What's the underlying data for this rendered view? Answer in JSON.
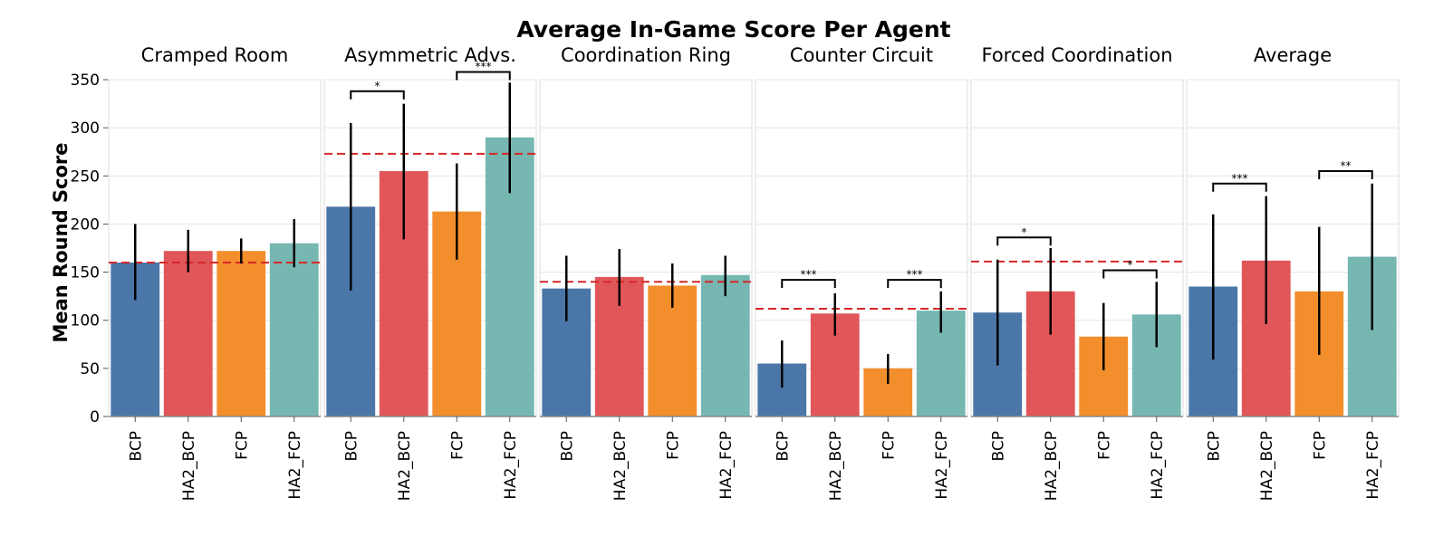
{
  "chart_data": {
    "type": "bar",
    "title": "Average In-Game Score Per Agent",
    "ylabel": "Mean Round Score",
    "ylim": [
      0,
      350
    ],
    "yticks": [
      0,
      50,
      100,
      150,
      200,
      250,
      300,
      350
    ],
    "grid": true,
    "categories": [
      "BCP",
      "HA2_BCP",
      "FCP",
      "HA2_FCP"
    ],
    "colors": [
      "#4a76a8",
      "#e15759",
      "#f28e2b",
      "#76b7b2"
    ],
    "reference_color": "#d62728",
    "panels": [
      {
        "title": "Cramped Room",
        "values": [
          160,
          172,
          172,
          180
        ],
        "error_low": [
          121,
          150,
          159,
          155
        ],
        "error_high": [
          200,
          194,
          185,
          205
        ],
        "reference": 160,
        "significance": []
      },
      {
        "title": "Asymmetric Advs.",
        "values": [
          218,
          255,
          213,
          290
        ],
        "error_low": [
          131,
          184,
          163,
          232
        ],
        "error_high": [
          305,
          325,
          263,
          347
        ],
        "reference": 273,
        "significance": [
          {
            "from": 0,
            "to": 1,
            "y": 338,
            "label": "*"
          },
          {
            "from": 2,
            "to": 3,
            "y": 358,
            "label": "***"
          }
        ]
      },
      {
        "title": "Coordination Ring",
        "values": [
          133,
          145,
          136,
          147
        ],
        "error_low": [
          99,
          115,
          113,
          125
        ],
        "error_high": [
          167,
          174,
          159,
          167
        ],
        "reference": 140,
        "significance": []
      },
      {
        "title": "Counter Circuit",
        "values": [
          55,
          107,
          50,
          110
        ],
        "error_low": [
          30,
          84,
          34,
          87
        ],
        "error_high": [
          79,
          128,
          65,
          130
        ],
        "reference": 112,
        "significance": [
          {
            "from": 0,
            "to": 1,
            "y": 142,
            "label": "***"
          },
          {
            "from": 2,
            "to": 3,
            "y": 142,
            "label": "***"
          }
        ]
      },
      {
        "title": "Forced Coordination",
        "values": [
          108,
          130,
          83,
          106
        ],
        "error_low": [
          53,
          85,
          48,
          72
        ],
        "error_high": [
          163,
          175,
          118,
          140
        ],
        "reference": 161,
        "significance": [
          {
            "from": 0,
            "to": 1,
            "y": 186,
            "label": "*"
          },
          {
            "from": 2,
            "to": 3,
            "y": 152,
            "label": "*"
          }
        ]
      },
      {
        "title": "Average",
        "values": [
          135,
          162,
          130,
          166
        ],
        "error_low": [
          59,
          96,
          64,
          90
        ],
        "error_high": [
          210,
          229,
          197,
          242
        ],
        "reference": null,
        "significance": [
          {
            "from": 0,
            "to": 1,
            "y": 242,
            "label": "***"
          },
          {
            "from": 2,
            "to": 3,
            "y": 255,
            "label": "**"
          }
        ]
      }
    ]
  }
}
